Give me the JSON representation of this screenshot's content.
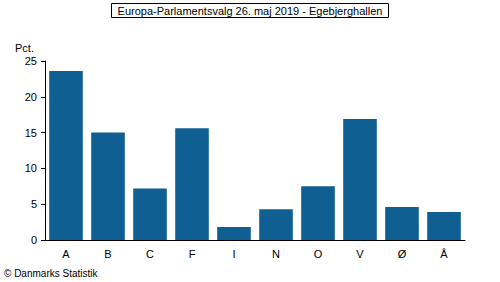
{
  "chart_data": {
    "type": "bar",
    "title": "Europa-Parlamentsvalg 26. maj 2019 - Egebjerghallen",
    "y_label": "Pct.",
    "caption": "© Danmarks Statistik",
    "categories": [
      "A",
      "B",
      "C",
      "F",
      "I",
      "N",
      "O",
      "V",
      "Ø",
      "Å"
    ],
    "values": [
      23.6,
      15.0,
      7.2,
      15.6,
      1.8,
      4.3,
      7.5,
      16.9,
      4.6,
      3.9
    ],
    "color": "#0f5f93",
    "ylim": [
      0,
      25
    ],
    "yticks": [
      0,
      5,
      10,
      15,
      20,
      25
    ],
    "grid": false
  }
}
